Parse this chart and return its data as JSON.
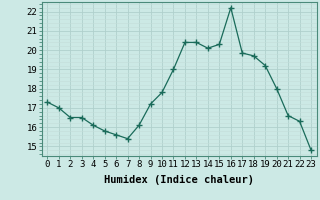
{
  "x": [
    0,
    1,
    2,
    3,
    4,
    5,
    6,
    7,
    8,
    9,
    10,
    11,
    12,
    13,
    14,
    15,
    16,
    17,
    18,
    19,
    20,
    21,
    22,
    23
  ],
  "y": [
    17.3,
    17.0,
    16.5,
    16.5,
    16.1,
    15.8,
    15.6,
    15.4,
    16.1,
    17.2,
    17.8,
    19.0,
    20.4,
    20.4,
    20.1,
    20.3,
    22.2,
    19.85,
    19.7,
    19.2,
    18.0,
    16.6,
    16.3,
    14.8
  ],
  "xlabel": "Humidex (Indice chaleur)",
  "ylim": [
    14.5,
    22.5
  ],
  "xlim": [
    -0.5,
    23.5
  ],
  "yticks": [
    15,
    16,
    17,
    18,
    19,
    20,
    21,
    22
  ],
  "xticks": [
    0,
    1,
    2,
    3,
    4,
    5,
    6,
    7,
    8,
    9,
    10,
    11,
    12,
    13,
    14,
    15,
    16,
    17,
    18,
    19,
    20,
    21,
    22,
    23
  ],
  "line_color": "#1a6b5a",
  "marker": "+",
  "marker_size": 4,
  "bg_color": "#cce9e5",
  "grid_major_color": "#b0d0cc",
  "grid_minor_color": "#c4deda",
  "axis_bg": "#cce9e5",
  "tick_fontsize": 6.5,
  "label_fontsize": 7.5,
  "spine_color": "#4a8a7a"
}
